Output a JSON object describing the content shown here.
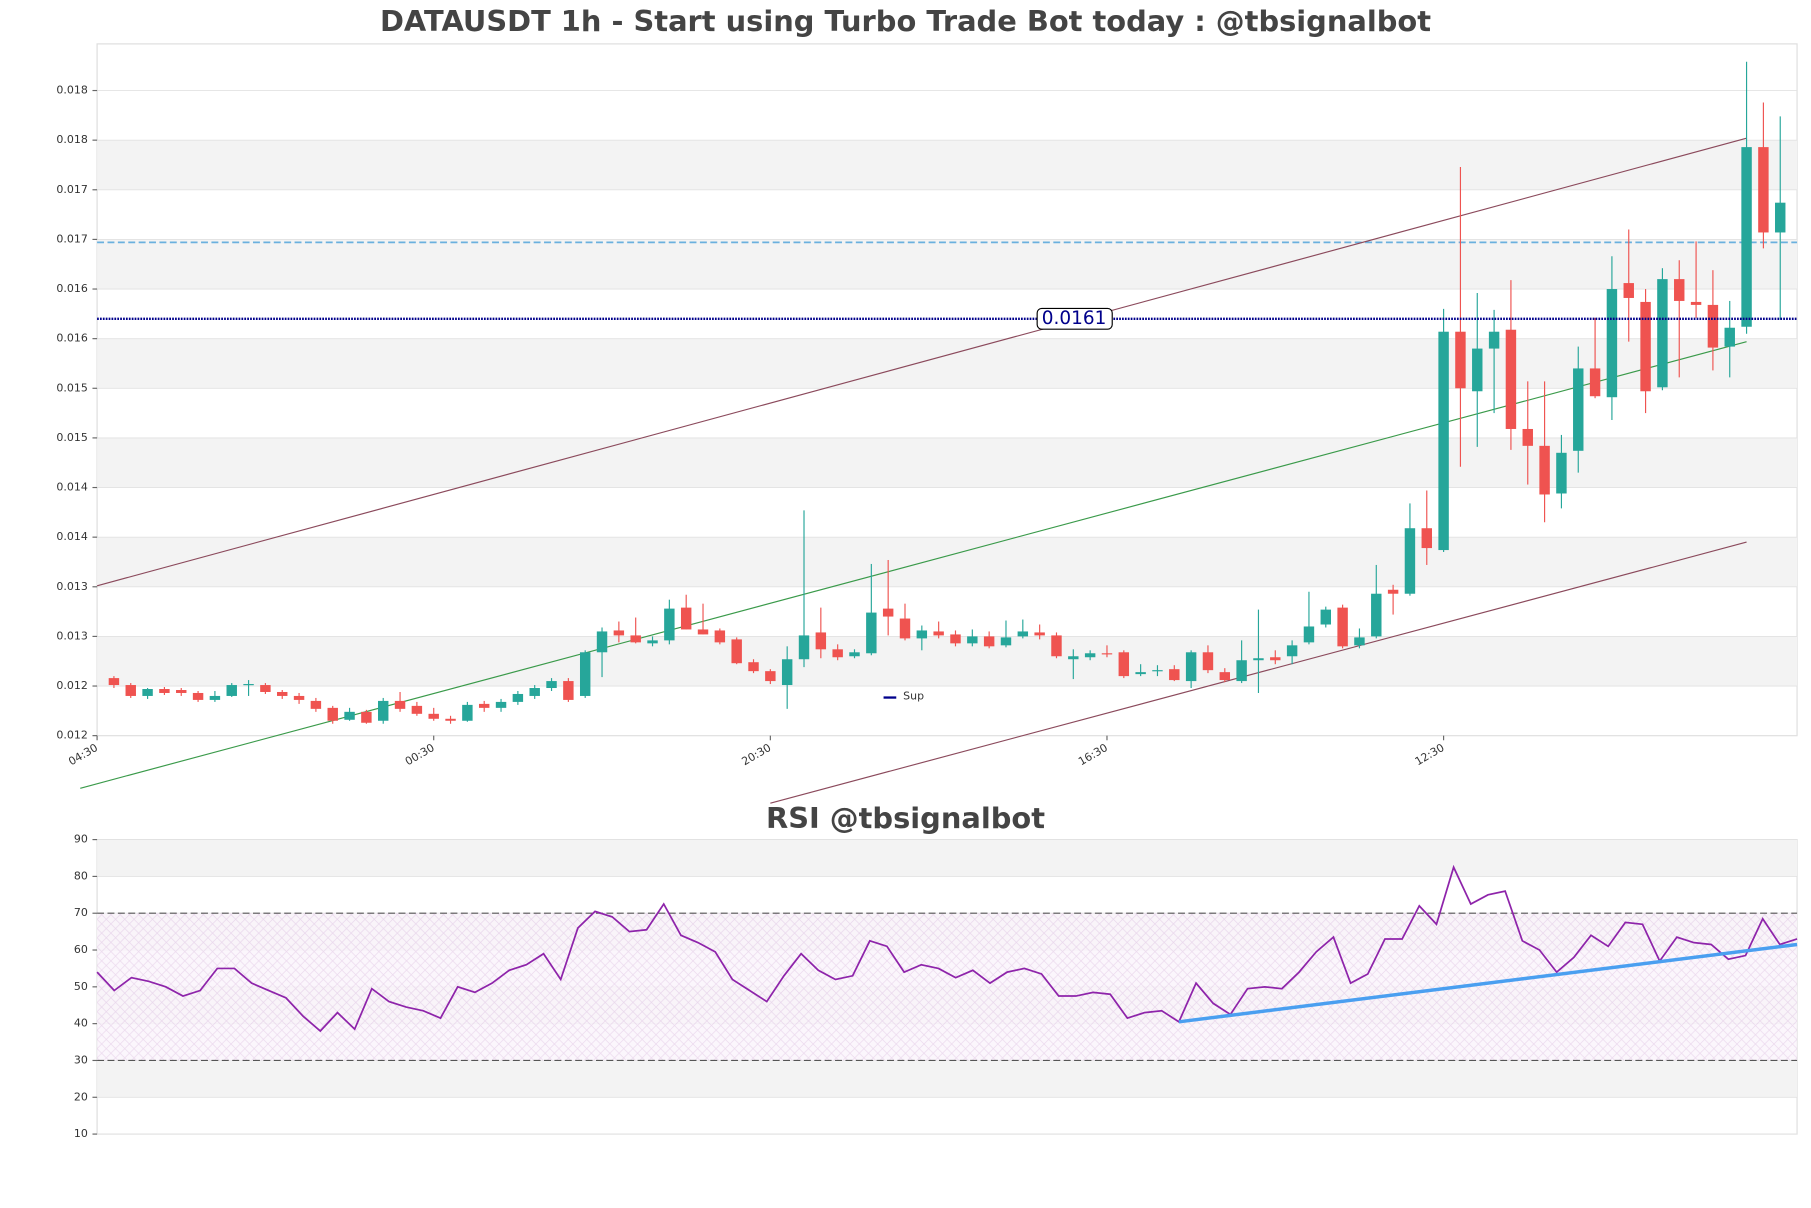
{
  "chart_data": [
    {
      "type": "candlestick",
      "title": "DATAUSDT 1h - Start using Turbo Trade Bot today : @tbsignalbot",
      "x": [
        1,
        2,
        3,
        4,
        5,
        6,
        7,
        8,
        9,
        10,
        11,
        12,
        13,
        14,
        15,
        16,
        17,
        18,
        19,
        20,
        21,
        22,
        23,
        24,
        25,
        26,
        27,
        28,
        29,
        30,
        31,
        32,
        33,
        34,
        35,
        36,
        37,
        38,
        39,
        40,
        41,
        42,
        43,
        44,
        45,
        46,
        47,
        48,
        49,
        50,
        51,
        52,
        53,
        54,
        55,
        56,
        57,
        58,
        59,
        60,
        61,
        62,
        63,
        64,
        65,
        66,
        67,
        68,
        69,
        70,
        71,
        72,
        73,
        74,
        75,
        76,
        77,
        78,
        79,
        80,
        81,
        82,
        83,
        84,
        85,
        86,
        87,
        88,
        89,
        90,
        91,
        92,
        93,
        94,
        95,
        96,
        97,
        98,
        99,
        100
      ],
      "open": [
        0.01248,
        0.01241,
        0.0123,
        0.01237,
        0.01236,
        0.01233,
        0.01226,
        0.0123,
        0.01241,
        0.01241,
        0.01234,
        0.0123,
        0.01225,
        0.01218,
        0.01206,
        0.01214,
        0.01205,
        0.01225,
        0.0122,
        0.01212,
        0.01207,
        0.01205,
        0.01222,
        0.01218,
        0.01224,
        0.0123,
        0.01238,
        0.01245,
        0.0123,
        0.01274,
        0.01296,
        0.01291,
        0.01283,
        0.01286,
        0.01319,
        0.01297,
        0.01296,
        0.01287,
        0.01264,
        0.01255,
        0.01241,
        0.01267,
        0.01294,
        0.01277,
        0.0127,
        0.01273,
        0.01318,
        0.01308,
        0.01288,
        0.01295,
        0.01292,
        0.01283,
        0.0129,
        0.01281,
        0.0129,
        0.01294,
        0.01291,
        0.01267,
        0.01269,
        0.01273,
        0.01274,
        0.01252,
        0.01255,
        0.01257,
        0.01245,
        0.01274,
        0.01254,
        0.01245,
        0.01266,
        0.01269,
        0.0127,
        0.01284,
        0.01302,
        0.01319,
        0.01281,
        0.0129,
        0.01337,
        0.01333,
        0.01399,
        0.01377,
        0.01597,
        0.01537,
        0.0158,
        0.01599,
        0.01499,
        0.01482,
        0.01434,
        0.01477,
        0.0156,
        0.01531,
        0.01646,
        0.01627,
        0.01541,
        0.0165,
        0.01627,
        0.01624,
        0.01582,
        0.01602,
        0.01783,
        0.01697
      ],
      "high": [
        0.0125,
        0.01243,
        0.01238,
        0.01239,
        0.01238,
        0.01235,
        0.01235,
        0.01243,
        0.01246,
        0.01243,
        0.01236,
        0.01233,
        0.01228,
        0.0122,
        0.01218,
        0.01216,
        0.01228,
        0.01234,
        0.01224,
        0.01218,
        0.0121,
        0.01224,
        0.01225,
        0.01227,
        0.01235,
        0.01241,
        0.01248,
        0.01248,
        0.01276,
        0.01299,
        0.01305,
        0.01309,
        0.0129,
        0.01327,
        0.01332,
        0.01323,
        0.01298,
        0.01289,
        0.01267,
        0.01257,
        0.0128,
        0.01417,
        0.01319,
        0.01282,
        0.01277,
        0.01363,
        0.01367,
        0.01323,
        0.01301,
        0.01305,
        0.01296,
        0.01297,
        0.01295,
        0.01306,
        0.01307,
        0.01302,
        0.01294,
        0.01277,
        0.01276,
        0.01281,
        0.01276,
        0.01262,
        0.01261,
        0.01261,
        0.01276,
        0.01281,
        0.01258,
        0.01286,
        0.01317,
        0.01276,
        0.01286,
        0.01335,
        0.0132,
        0.01322,
        0.01298,
        0.01362,
        0.01342,
        0.01424,
        0.01437,
        0.0162,
        0.01763,
        0.01636,
        0.01619,
        0.01649,
        0.01547,
        0.01547,
        0.01493,
        0.01582,
        0.01611,
        0.01673,
        0.017,
        0.0164,
        0.01661,
        0.01669,
        0.01688,
        0.01659,
        0.01628,
        0.01869,
        0.01828,
        0.01814
      ],
      "low": [
        0.01238,
        0.01228,
        0.01227,
        0.01231,
        0.0123,
        0.01224,
        0.01224,
        0.01229,
        0.0123,
        0.01232,
        0.01227,
        0.01222,
        0.01214,
        0.01202,
        0.01205,
        0.01202,
        0.01202,
        0.01214,
        0.0121,
        0.01205,
        0.01202,
        0.01204,
        0.01214,
        0.01214,
        0.01221,
        0.01227,
        0.01235,
        0.01224,
        0.01228,
        0.01249,
        0.01284,
        0.01283,
        0.0128,
        0.01282,
        0.01297,
        0.01292,
        0.01282,
        0.01262,
        0.01253,
        0.01242,
        0.01217,
        0.01259,
        0.01268,
        0.01266,
        0.01268,
        0.01271,
        0.01291,
        0.01286,
        0.01276,
        0.01288,
        0.0128,
        0.0128,
        0.01278,
        0.01279,
        0.01288,
        0.01287,
        0.01268,
        0.01247,
        0.01266,
        0.01269,
        0.01248,
        0.0125,
        0.0125,
        0.01245,
        0.01238,
        0.01253,
        0.01244,
        0.01243,
        0.01233,
        0.01262,
        0.01262,
        0.01282,
        0.01299,
        0.01278,
        0.01278,
        0.01288,
        0.01312,
        0.01331,
        0.01362,
        0.01375,
        0.01461,
        0.01481,
        0.01515,
        0.01478,
        0.01443,
        0.01405,
        0.01419,
        0.01455,
        0.0153,
        0.01508,
        0.01587,
        0.01515,
        0.01538,
        0.01551,
        0.01611,
        0.01558,
        0.01551,
        0.01595,
        0.01681,
        0.01609
      ],
      "close": [
        0.01241,
        0.0123,
        0.01237,
        0.01233,
        0.01233,
        0.01226,
        0.0123,
        0.01241,
        0.01242,
        0.01234,
        0.0123,
        0.01226,
        0.01217,
        0.01205,
        0.01214,
        0.01203,
        0.01225,
        0.01217,
        0.01212,
        0.01207,
        0.01205,
        0.01221,
        0.01218,
        0.01224,
        0.01232,
        0.01238,
        0.01245,
        0.01226,
        0.01274,
        0.01295,
        0.01291,
        0.01284,
        0.01286,
        0.01318,
        0.01297,
        0.01292,
        0.01284,
        0.01263,
        0.01255,
        0.01245,
        0.01267,
        0.01291,
        0.01277,
        0.01269,
        0.01274,
        0.01314,
        0.0131,
        0.01288,
        0.01296,
        0.01291,
        0.01283,
        0.0129,
        0.0128,
        0.01289,
        0.01295,
        0.01291,
        0.0127,
        0.0127,
        0.01273,
        0.01272,
        0.0125,
        0.01254,
        0.01256,
        0.01246,
        0.01274,
        0.01256,
        0.01246,
        0.01266,
        0.01268,
        0.01266,
        0.01281,
        0.013,
        0.01317,
        0.0128,
        0.01289,
        0.01333,
        0.01333,
        0.01399,
        0.01379,
        0.01597,
        0.0154,
        0.0158,
        0.01597,
        0.01499,
        0.01482,
        0.01433,
        0.01475,
        0.0156,
        0.01532,
        0.0164,
        0.01631,
        0.01537,
        0.0165,
        0.01628,
        0.01624,
        0.01581,
        0.01601,
        0.01783,
        0.01697,
        0.01727
      ],
      "up_color": "#26a69a",
      "down_color": "#ef5350",
      "xlim": [
        0,
        101
      ],
      "xticks": [
        {
          "value": 0,
          "label": "04:30"
        },
        {
          "value": 20,
          "label": "00:30"
        },
        {
          "value": 40,
          "label": "20:30"
        },
        {
          "value": 60,
          "label": "16:30"
        },
        {
          "value": 80,
          "label": "12:30"
        }
      ],
      "ylim": [
        0.0119,
        0.01887
      ],
      "yticks": [
        {
          "value": 0.0119,
          "label": "0.012"
        },
        {
          "value": 0.0124,
          "label": "0.012"
        },
        {
          "value": 0.0129,
          "label": "0.013"
        },
        {
          "value": 0.0134,
          "label": "0.013"
        },
        {
          "value": 0.0139,
          "label": "0.014"
        },
        {
          "value": 0.0144,
          "label": "0.014"
        },
        {
          "value": 0.0149,
          "label": "0.015"
        },
        {
          "value": 0.0154,
          "label": "0.015"
        },
        {
          "value": 0.0159,
          "label": "0.016"
        },
        {
          "value": 0.0164,
          "label": "0.016"
        },
        {
          "value": 0.0169,
          "label": "0.017"
        },
        {
          "value": 0.0174,
          "label": "0.017"
        },
        {
          "value": 0.0179,
          "label": "0.018"
        },
        {
          "value": 0.0184,
          "label": "0.018"
        }
      ],
      "grid": true,
      "lines": [
        {
          "name": "Sup",
          "value": 0.0161,
          "color": "#00008b"
        }
      ],
      "dashed_levels": [
        {
          "value": 0.01687,
          "color": "#6ab0de"
        }
      ],
      "trend_lines": [
        {
          "color": "#8b4a5c",
          "x": [
            0,
            98
          ],
          "y": [
            0.01341,
            0.01792
          ]
        },
        {
          "color": "#8b4a5c",
          "x": [
            40,
            98
          ],
          "y": [
            0.01122,
            0.01385
          ]
        },
        {
          "color": "#3a9a4a",
          "x": [
            -1,
            98
          ],
          "y": [
            0.01137,
            0.01587
          ]
        }
      ]
    },
    {
      "type": "line",
      "title": "RSI @tbsignalbot",
      "x": [
        1,
        2,
        3,
        4,
        5,
        6,
        7,
        8,
        9,
        10,
        11,
        12,
        13,
        14,
        15,
        16,
        17,
        18,
        19,
        20,
        21,
        22,
        23,
        24,
        25,
        26,
        27,
        28,
        29,
        30,
        31,
        32,
        33,
        34,
        35,
        36,
        37,
        38,
        39,
        40,
        41,
        42,
        43,
        44,
        45,
        46,
        47,
        48,
        49,
        50,
        51,
        52,
        53,
        54,
        55,
        56,
        57,
        58,
        59,
        60,
        61,
        62,
        63,
        64,
        65,
        66,
        67,
        68,
        69,
        70,
        71,
        72,
        73,
        74,
        75,
        76,
        77,
        78,
        79,
        80,
        81,
        82,
        83,
        84,
        85,
        86,
        87,
        88,
        89,
        90,
        91,
        92,
        93,
        94,
        95,
        96,
        97,
        98,
        99,
        100
      ],
      "series": [
        {
          "color": "#8e24aa",
          "values": [
            54,
            49,
            52.5,
            51.5,
            50,
            47.5,
            49,
            55,
            55,
            51,
            49,
            47,
            42,
            38,
            43,
            38.5,
            49.5,
            46,
            44.5,
            43.5,
            41.5,
            50,
            48.5,
            51,
            54.5,
            56,
            59,
            52,
            66,
            70.5,
            69,
            65,
            65.5,
            72.5,
            64,
            62,
            59.5,
            52,
            49,
            46,
            53,
            59,
            54.5,
            52,
            53,
            62.5,
            61,
            54,
            56,
            55,
            52.5,
            54.5,
            51,
            54,
            55,
            53.5,
            47.5,
            47.5,
            48.5,
            48,
            41.5,
            43,
            43.5,
            40.5,
            51,
            45.5,
            42.5,
            49.5,
            50,
            49.5,
            54,
            59.5,
            63.5,
            51,
            53.5,
            63,
            63,
            72,
            67,
            82.5,
            72.5,
            75,
            76,
            62.5,
            60,
            54,
            58,
            64,
            61,
            67.5,
            67,
            57,
            63.5,
            62,
            61.5,
            57.5,
            58.5,
            68.5,
            61.5,
            63
          ]
        }
      ],
      "xlim": [
        1,
        100
      ],
      "ylim": [
        10,
        90
      ],
      "yticks": [
        10,
        20,
        30,
        40,
        50,
        60,
        70,
        80,
        90
      ],
      "grid": true,
      "levels": [
        30,
        70
      ],
      "trend_lines": [
        {
          "color": "#4a9ff0",
          "x": [
            64,
            100
          ],
          "y": [
            40.5,
            61.5
          ]
        }
      ]
    }
  ]
}
